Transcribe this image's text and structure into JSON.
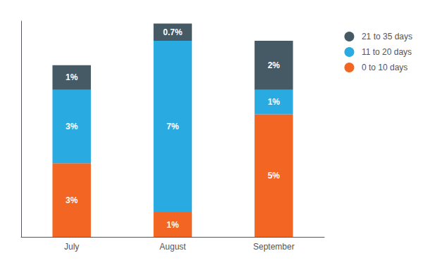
{
  "chart_data": {
    "type": "bar",
    "stacked": true,
    "data_labels": true,
    "categories": [
      "July",
      "August",
      "September"
    ],
    "series": [
      {
        "name": "0 to 10 days",
        "color": "#F26522",
        "values": [
          3,
          1,
          5
        ],
        "value_labels": [
          "3%",
          "1%",
          "5%"
        ]
      },
      {
        "name": "11 to 20 days",
        "color": "#29ABE2",
        "values": [
          3,
          7,
          1
        ],
        "value_labels": [
          "3%",
          "7%",
          "1%"
        ]
      },
      {
        "name": "21 to 35 days",
        "color": "#455A64",
        "values": [
          1,
          0.7,
          2
        ],
        "value_labels": [
          "1%",
          "0.7%",
          "2%"
        ]
      }
    ],
    "ylim": [
      0,
      8.8
    ],
    "grid": false,
    "legend": "right",
    "tick_labels": "x"
  }
}
